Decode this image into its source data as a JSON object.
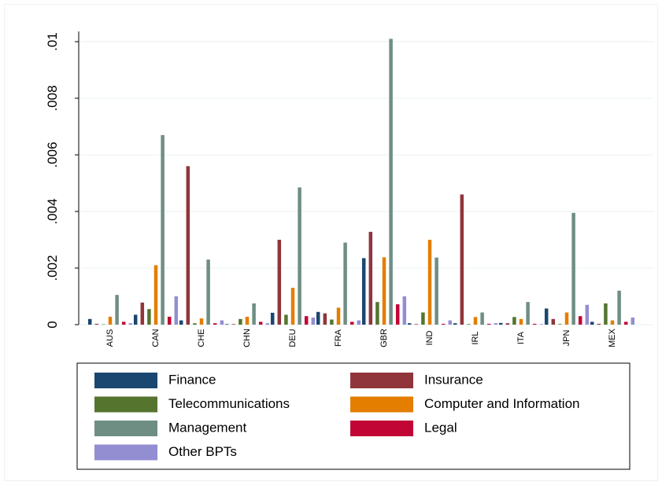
{
  "chart_data": {
    "type": "bar",
    "categories": [
      "AUS",
      "CAN",
      "CHE",
      "CHN",
      "DEU",
      "FRA",
      "GBR",
      "IND",
      "IRL",
      "ITA",
      "JPN",
      "MEX"
    ],
    "series": [
      {
        "name": "Finance",
        "color": "#1a476f",
        "values": [
          0.0002,
          0.00035,
          0.00015,
          2e-05,
          0.00042,
          0.00045,
          0.00235,
          5e-05,
          5e-05,
          6e-05,
          0.00057,
          0.0001
        ]
      },
      {
        "name": "Insurance",
        "color": "#90353b",
        "values": [
          3e-05,
          0.00078,
          0.0056,
          2e-05,
          0.003,
          0.0004,
          0.00328,
          2e-05,
          0.0046,
          5e-05,
          0.0002,
          3e-05
        ]
      },
      {
        "name": "Telecommunications",
        "color": "#55752f",
        "values": [
          1e-05,
          0.00055,
          5e-05,
          0.0002,
          0.00035,
          0.00018,
          0.0008,
          0.00043,
          2e-05,
          0.00027,
          2e-05,
          0.00075
        ]
      },
      {
        "name": "Computer and Information",
        "color": "#e37e00",
        "values": [
          0.00028,
          0.0021,
          0.00022,
          0.00028,
          0.0013,
          0.0006,
          0.00238,
          0.003,
          0.00027,
          0.0002,
          0.00043,
          0.00015
        ]
      },
      {
        "name": "Management",
        "color": "#6e8e84",
        "values": [
          0.00105,
          0.0067,
          0.0023,
          0.00075,
          0.00485,
          0.0029,
          0.0101,
          0.00237,
          0.00043,
          0.0008,
          0.00395,
          0.0012
        ]
      },
      {
        "name": "Legal",
        "color": "#c10534",
        "values": [
          0.0001,
          0.00028,
          5e-05,
          0.0001,
          0.0003,
          0.0001,
          0.00072,
          3e-05,
          3e-05,
          3e-05,
          0.0003,
          0.0001
        ]
      },
      {
        "name": "Other BPTs",
        "color": "#938dd2",
        "values": [
          5e-05,
          0.001,
          0.00015,
          5e-05,
          0.00025,
          0.00015,
          0.001,
          0.00015,
          5e-05,
          2e-05,
          0.0007,
          0.00025
        ]
      }
    ],
    "ylim": [
      0,
      0.01
    ],
    "yticks": [
      0,
      {
        "value": 0.002,
        "label": ".002"
      },
      {
        "value": 0.004,
        "label": ".004"
      },
      {
        "value": 0.006,
        "label": ".006"
      },
      {
        "value": 0.008,
        "label": ".008"
      },
      {
        "value": 0.01,
        "label": ".01"
      }
    ],
    "grid": true
  }
}
